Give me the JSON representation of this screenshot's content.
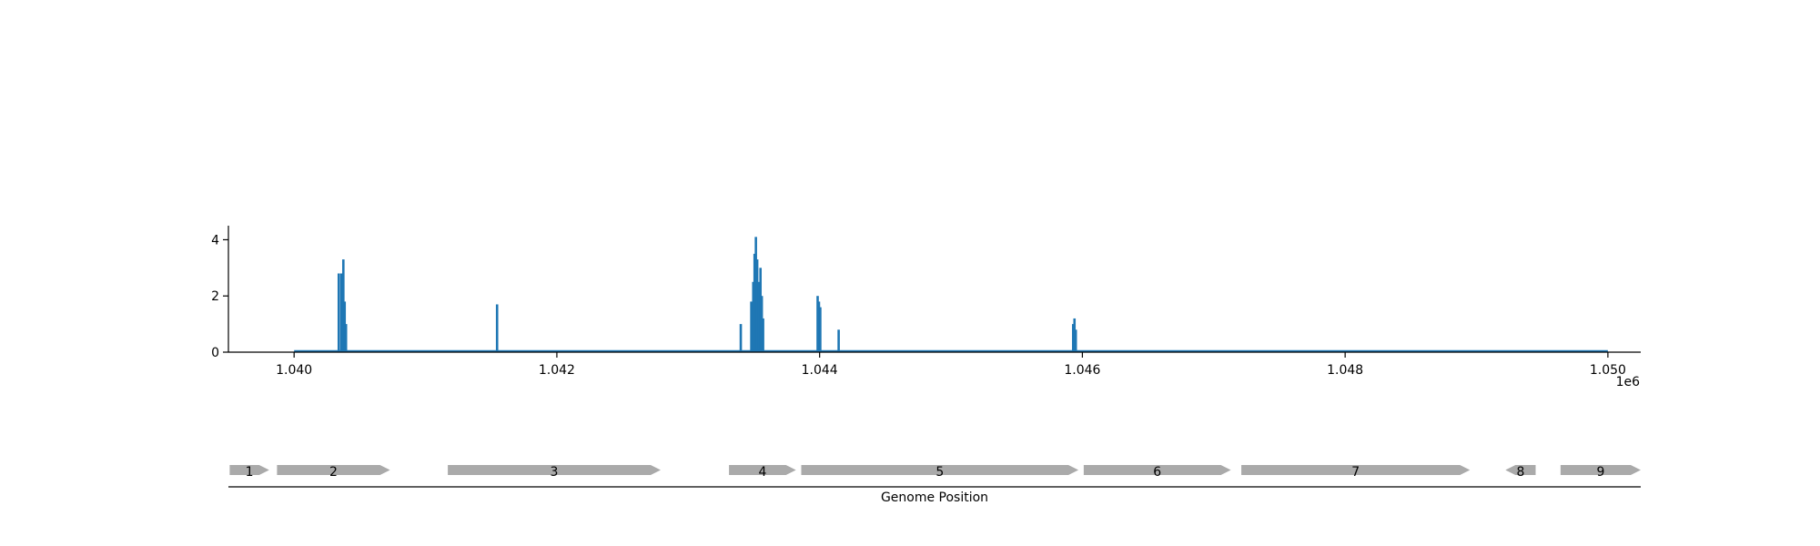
{
  "chart_data": [
    {
      "type": "bar",
      "title": "",
      "xlabel": "",
      "ylabel": "",
      "x_offset_label": "1e6",
      "xlim": [
        1039500,
        1050250
      ],
      "ylim": [
        0,
        4.5
      ],
      "x_range_shown": [
        1040000,
        1050000
      ],
      "x_ticks": [
        {
          "value": 1040000,
          "label": "1.040"
        },
        {
          "value": 1042000,
          "label": "1.042"
        },
        {
          "value": 1044000,
          "label": "1.044"
        },
        {
          "value": 1046000,
          "label": "1.046"
        },
        {
          "value": 1048000,
          "label": "1.048"
        },
        {
          "value": 1050000,
          "label": "1.050"
        }
      ],
      "y_ticks": [
        {
          "value": 0,
          "label": "0"
        },
        {
          "value": 2,
          "label": "2"
        },
        {
          "value": 4,
          "label": "4"
        }
      ],
      "color": "#1f77b4",
      "grid": false,
      "points": [
        {
          "x": 1040340,
          "y": 2.8
        },
        {
          "x": 1040360,
          "y": 2.8
        },
        {
          "x": 1040375,
          "y": 3.3
        },
        {
          "x": 1040385,
          "y": 1.8
        },
        {
          "x": 1040395,
          "y": 1.0
        },
        {
          "x": 1041545,
          "y": 1.7
        },
        {
          "x": 1043400,
          "y": 1.0
        },
        {
          "x": 1043480,
          "y": 1.8
        },
        {
          "x": 1043495,
          "y": 2.5
        },
        {
          "x": 1043505,
          "y": 3.5
        },
        {
          "x": 1043515,
          "y": 4.1
        },
        {
          "x": 1043525,
          "y": 3.3
        },
        {
          "x": 1043540,
          "y": 2.5
        },
        {
          "x": 1043550,
          "y": 3.0
        },
        {
          "x": 1043560,
          "y": 2.0
        },
        {
          "x": 1043570,
          "y": 1.2
        },
        {
          "x": 1043985,
          "y": 2.0
        },
        {
          "x": 1043995,
          "y": 1.8
        },
        {
          "x": 1044005,
          "y": 1.6
        },
        {
          "x": 1044145,
          "y": 0.8
        },
        {
          "x": 1045930,
          "y": 1.0
        },
        {
          "x": 1045940,
          "y": 1.2
        },
        {
          "x": 1045950,
          "y": 0.8
        }
      ]
    },
    {
      "type": "gene-track",
      "xlabel": "Genome Position",
      "xlim": [
        1039500,
        1050250
      ],
      "color": "#aaaaaa",
      "genes": [
        {
          "label": "1",
          "start": 1039510,
          "end": 1039810,
          "strand": "+"
        },
        {
          "label": "2",
          "start": 1039870,
          "end": 1040730,
          "strand": "+"
        },
        {
          "label": "3",
          "start": 1041170,
          "end": 1042790,
          "strand": "+"
        },
        {
          "label": "4",
          "start": 1043310,
          "end": 1043820,
          "strand": "+"
        },
        {
          "label": "5",
          "start": 1043860,
          "end": 1045970,
          "strand": "+"
        },
        {
          "label": "6",
          "start": 1046010,
          "end": 1047130,
          "strand": "+"
        },
        {
          "label": "7",
          "start": 1047210,
          "end": 1048950,
          "strand": "+"
        },
        {
          "label": "8",
          "start": 1049220,
          "end": 1049450,
          "strand": "-"
        },
        {
          "label": "9",
          "start": 1049640,
          "end": 1050560,
          "strand": "+"
        }
      ]
    }
  ]
}
